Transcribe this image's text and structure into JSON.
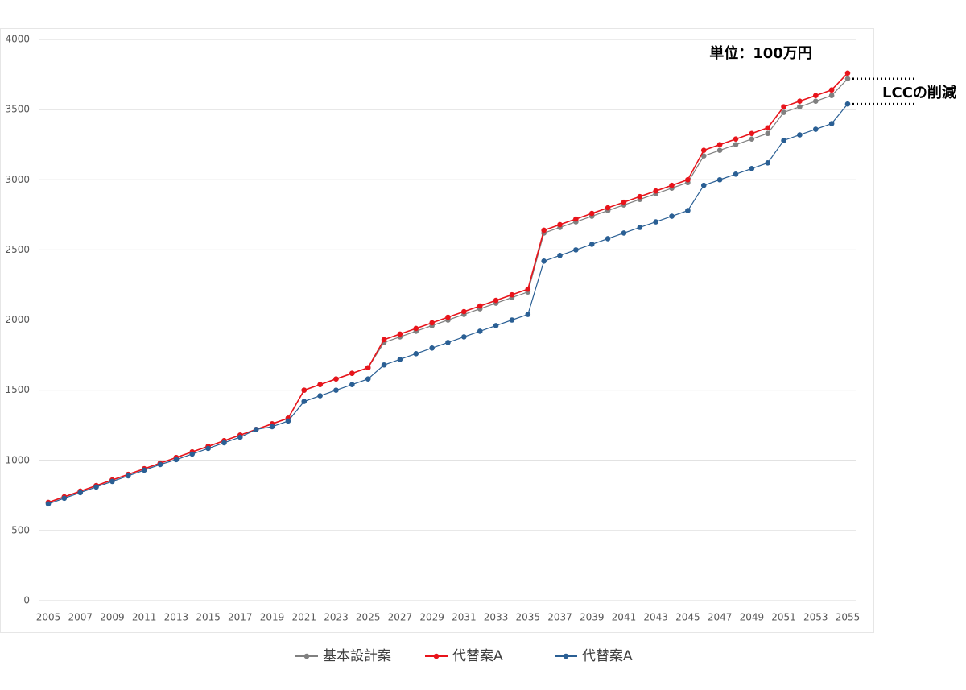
{
  "chart_data": {
    "type": "line",
    "annotations": [
      "単位：100万円",
      "LCCの削減"
    ],
    "categories": [
      "2005",
      null,
      "2007",
      null,
      "2009",
      null,
      "2011",
      null,
      "2013",
      null,
      "2015",
      null,
      "2017",
      null,
      "2019",
      null,
      "2021",
      null,
      "2023",
      null,
      "2025",
      null,
      "2027",
      null,
      "2029",
      null,
      "2031",
      null,
      "2033",
      null,
      "2035",
      null,
      "2037",
      null,
      "2039",
      null,
      "2041",
      null,
      "2043",
      null,
      "2045",
      null,
      "2047",
      null,
      "2049",
      null,
      "2051",
      null,
      "2053",
      null,
      "2055"
    ],
    "ylim": [
      0,
      4000
    ],
    "yticks": [
      0,
      500,
      1000,
      1500,
      2000,
      2500,
      3000,
      3500,
      4000
    ],
    "grid": true,
    "legend": "bottom",
    "series": [
      {
        "name": "基本設計案",
        "color": "#808080",
        "values": [
          700,
          740,
          780,
          820,
          860,
          900,
          940,
          980,
          1020,
          1060,
          1100,
          1140,
          1180,
          1220,
          1260,
          1300,
          1500,
          1540,
          1580,
          1620,
          1660,
          1840,
          1880,
          1920,
          1960,
          2000,
          2040,
          2080,
          2120,
          2160,
          2200,
          2620,
          2660,
          2700,
          2740,
          2780,
          2820,
          2860,
          2900,
          2940,
          2980,
          3170,
          3210,
          3250,
          3290,
          3330,
          3480,
          3520,
          3560,
          3600,
          3720
        ]
      },
      {
        "name": "代替案A",
        "color": "#e8141b",
        "values": [
          700,
          740,
          780,
          820,
          860,
          900,
          940,
          980,
          1020,
          1060,
          1100,
          1140,
          1180,
          1220,
          1260,
          1300,
          1500,
          1540,
          1580,
          1620,
          1660,
          1860,
          1900,
          1940,
          1980,
          2020,
          2060,
          2100,
          2140,
          2180,
          2220,
          2640,
          2680,
          2720,
          2760,
          2800,
          2840,
          2880,
          2920,
          2960,
          3000,
          3210,
          3250,
          3290,
          3330,
          3370,
          3520,
          3560,
          3600,
          3640,
          3760
        ]
      },
      {
        "name": "代替案A",
        "color": "#2a5f94",
        "values": [
          690,
          730,
          770,
          810,
          850,
          890,
          930,
          970,
          1005,
          1045,
          1085,
          1125,
          1165,
          1220,
          1240,
          1280,
          1420,
          1460,
          1500,
          1540,
          1580,
          1680,
          1720,
          1760,
          1800,
          1840,
          1880,
          1920,
          1960,
          2000,
          2040,
          2420,
          2460,
          2500,
          2540,
          2580,
          2620,
          2660,
          2700,
          2740,
          2780,
          2960,
          3000,
          3040,
          3080,
          3120,
          3280,
          3320,
          3360,
          3400,
          3540
        ]
      }
    ]
  }
}
